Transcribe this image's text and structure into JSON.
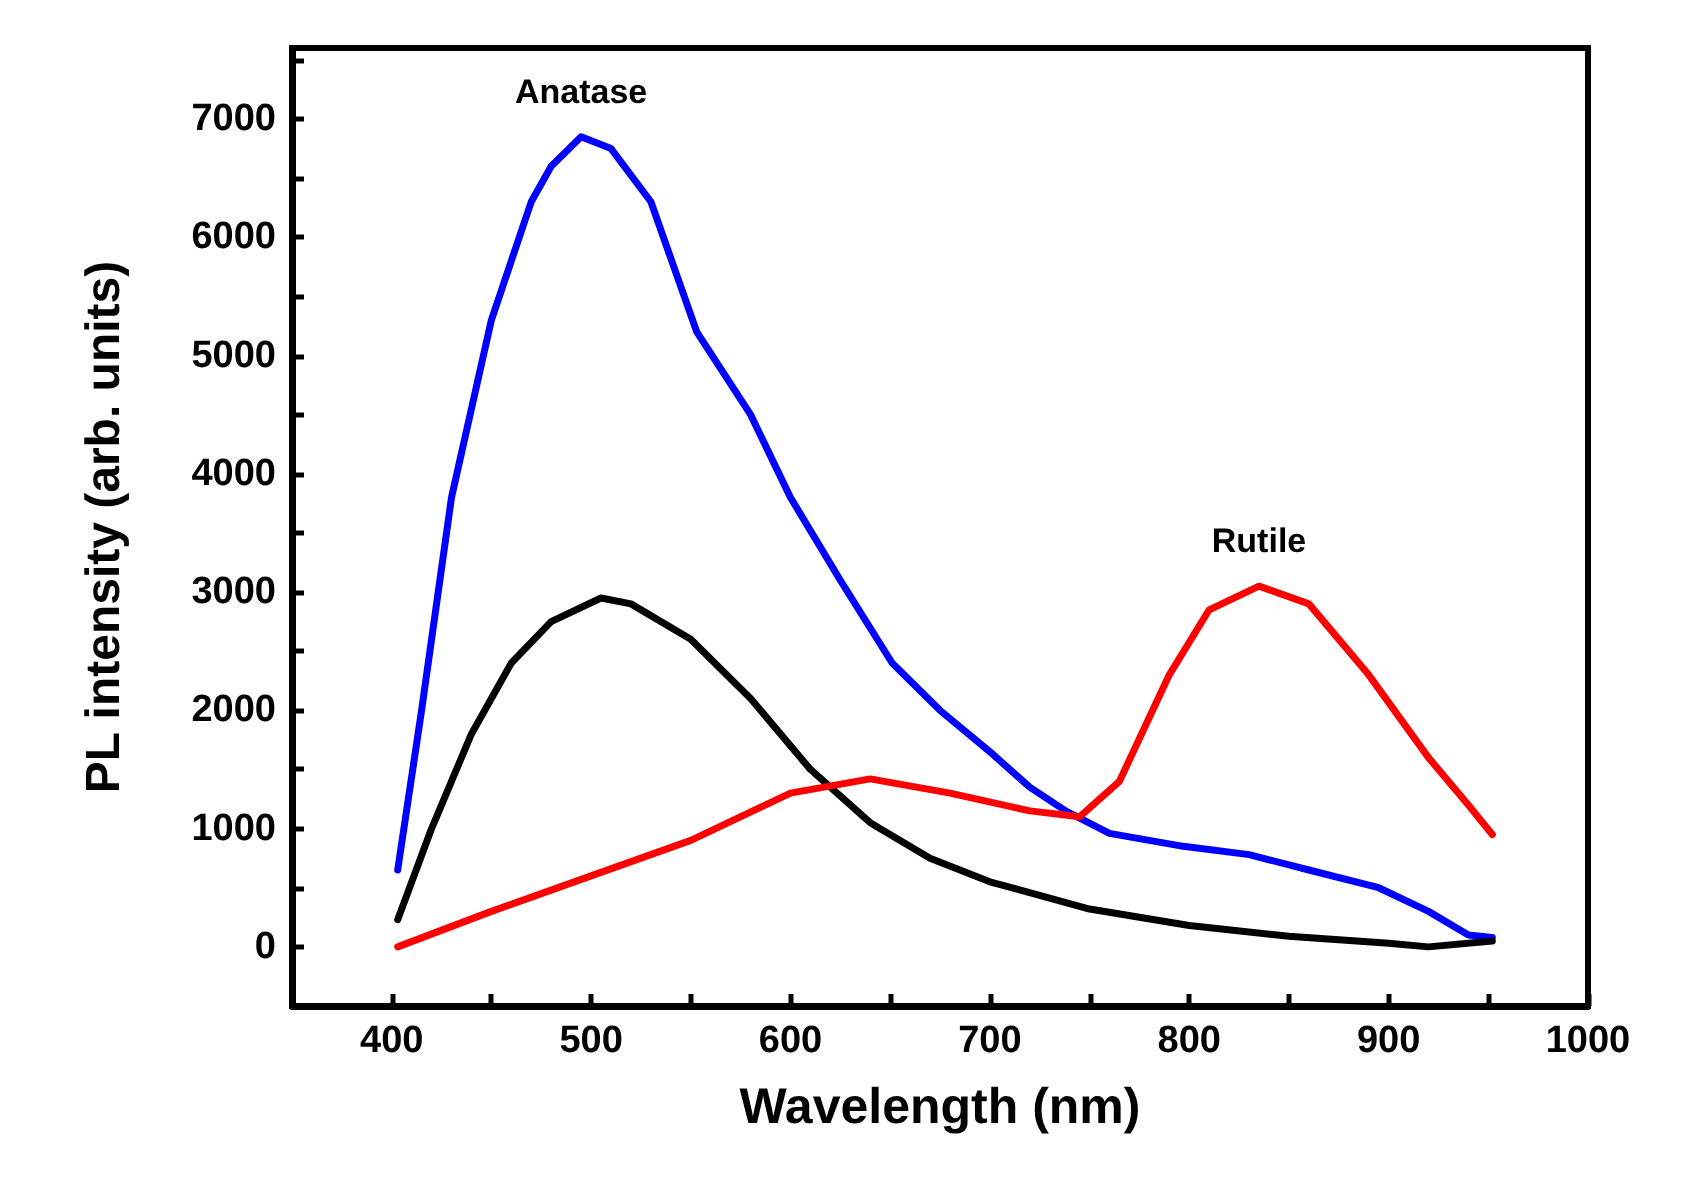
{
  "chart_data": {
    "type": "line",
    "xlabel": "Wavelength (nm)",
    "ylabel": "PL intensity (arb. units)",
    "xlim": [
      350,
      1000
    ],
    "ylim": [
      -500,
      7600
    ],
    "xticks": [
      400,
      {
        "value": 450,
        "label": null
      },
      500,
      {
        "value": 550,
        "label": null
      },
      600,
      {
        "value": 650,
        "label": null
      },
      700,
      {
        "value": 750,
        "label": null
      },
      800,
      {
        "value": 850,
        "label": null
      },
      900,
      {
        "value": 950,
        "label": null
      },
      1000
    ],
    "yticks": [
      0,
      {
        "value": 500,
        "label": null
      },
      1000,
      {
        "value": 1500,
        "label": null
      },
      2000,
      {
        "value": 2500,
        "label": null
      },
      3000,
      {
        "value": 3500,
        "label": null
      },
      4000,
      {
        "value": 4500,
        "label": null
      },
      5000,
      {
        "value": 5500,
        "label": null
      },
      6000,
      {
        "value": 6500,
        "label": null
      },
      7000,
      {
        "value": 7500,
        "label": null
      }
    ],
    "marker": "none",
    "line_style": "solid",
    "series": [
      {
        "color": "#0000ff",
        "x": [
          403,
          415,
          430,
          450,
          470,
          480,
          495,
          510,
          530,
          553,
          580,
          600,
          625,
          651,
          675,
          700,
          720,
          738,
          760,
          797,
          830,
          860,
          895,
          920,
          940,
          952
        ],
        "values": [
          650,
          2000,
          3800,
          5300,
          6300,
          6600,
          6850,
          6750,
          6300,
          5200,
          4500,
          3800,
          3100,
          2400,
          2000,
          1650,
          1350,
          1150,
          960,
          850,
          780,
          650,
          500,
          300,
          100,
          80
        ]
      },
      {
        "color": "#000000",
        "x": [
          403,
          420,
          440,
          460,
          480,
          505,
          520,
          550,
          580,
          610,
          640,
          670,
          700,
          750,
          800,
          850,
          900,
          920,
          952
        ],
        "values": [
          230,
          1000,
          1800,
          2400,
          2750,
          2950,
          2900,
          2600,
          2100,
          1500,
          1050,
          750,
          550,
          320,
          180,
          90,
          30,
          0,
          50
        ]
      },
      {
        "color": "#ff0000",
        "x": [
          403,
          450,
          500,
          550,
          600,
          640,
          680,
          720,
          745,
          765,
          790,
          810,
          835,
          860,
          890,
          920,
          940,
          952
        ],
        "values": [
          0,
          300,
          600,
          900,
          1300,
          1420,
          1300,
          1150,
          1100,
          1400,
          2300,
          2850,
          3050,
          2900,
          2300,
          1600,
          1200,
          950
        ]
      }
    ],
    "annotations": [
      {
        "text": "Anatase",
        "x": 495,
        "y": 6850
      },
      {
        "text": "Rutile",
        "x": 835,
        "y": 3050
      }
    ]
  }
}
